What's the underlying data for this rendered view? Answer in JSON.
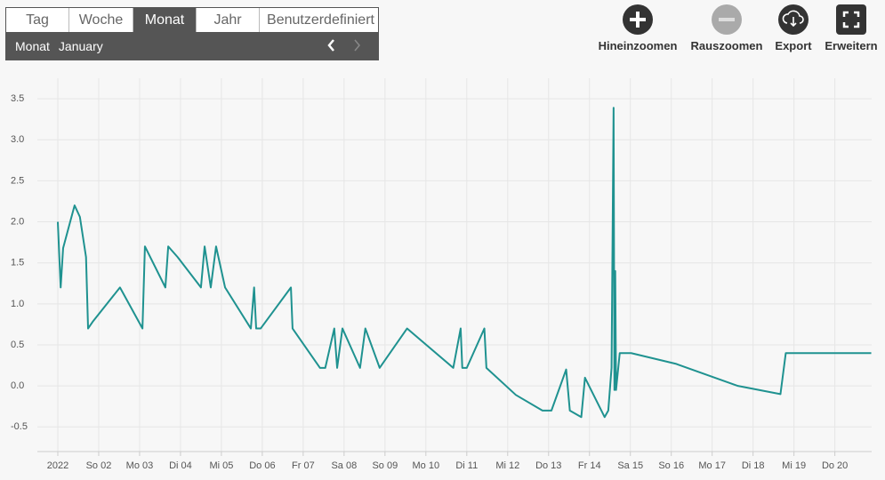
{
  "toolbar": {
    "tabs": [
      "Tag",
      "Woche",
      "Monat",
      "Jahr",
      "Benutzerdefiniert"
    ],
    "active_tab": 2,
    "period_label": "Monat",
    "period_value": "January"
  },
  "actions": [
    "Hineinzoomen",
    "Rauszoomen",
    "Export",
    "Erweitern"
  ],
  "chart_data": {
    "type": "line",
    "color": "#1f9290",
    "grid": true,
    "x": [
      1.0,
      1.07,
      1.13,
      1.41,
      1.54,
      1.69,
      1.74,
      1.85,
      2.52,
      3.07,
      3.13,
      3.63,
      3.7,
      3.93,
      4.5,
      4.59,
      4.74,
      4.87,
      5.09,
      5.72,
      5.8,
      5.85,
      5.96,
      6.7,
      6.74,
      7.41,
      7.54,
      7.76,
      7.83,
      7.96,
      8.39,
      8.52,
      8.87,
      9.54,
      10.67,
      10.85,
      10.89,
      11.0,
      11.43,
      11.48,
      12.2,
      12.85,
      13.07,
      13.43,
      13.52,
      13.8,
      13.89,
      14.37,
      14.46,
      14.54,
      14.59,
      14.61,
      14.63,
      14.65,
      14.74,
      15.02,
      16.11,
      17.63,
      18.67,
      18.8,
      20.89
    ],
    "values": [
      2.0,
      1.2,
      1.68,
      2.2,
      2.06,
      1.57,
      0.7,
      0.78,
      1.2,
      0.7,
      1.7,
      1.2,
      1.7,
      1.57,
      1.2,
      1.7,
      1.2,
      1.7,
      1.2,
      0.7,
      1.2,
      0.7,
      0.7,
      1.2,
      0.7,
      0.22,
      0.22,
      0.7,
      0.22,
      0.7,
      0.22,
      0.7,
      0.22,
      0.7,
      0.22,
      0.7,
      0.22,
      0.22,
      0.7,
      0.22,
      -0.11,
      -0.3,
      -0.3,
      0.2,
      -0.3,
      -0.38,
      0.1,
      -0.38,
      -0.3,
      0.22,
      3.39,
      -0.05,
      1.4,
      -0.05,
      0.4,
      0.4,
      0.27,
      0.0,
      -0.1,
      0.4,
      0.4
    ],
    "xlim": [
      0.5,
      20.9
    ],
    "xticks": [
      {
        "value": 1,
        "label": "2022"
      },
      {
        "value": 2,
        "label": "So 02"
      },
      {
        "value": 3,
        "label": "Mo 03"
      },
      {
        "value": 4,
        "label": "Di 04"
      },
      {
        "value": 5,
        "label": "Mi 05"
      },
      {
        "value": 6,
        "label": "Do 06"
      },
      {
        "value": 7,
        "label": "Fr 07"
      },
      {
        "value": 8,
        "label": "Sa 08"
      },
      {
        "value": 9,
        "label": "So 09"
      },
      {
        "value": 10,
        "label": "Mo 10"
      },
      {
        "value": 11,
        "label": "Di 11"
      },
      {
        "value": 12,
        "label": "Mi 12"
      },
      {
        "value": 13,
        "label": "Do 13"
      },
      {
        "value": 14,
        "label": "Fr 14"
      },
      {
        "value": 15,
        "label": "Sa 15"
      },
      {
        "value": 16,
        "label": "So 16"
      },
      {
        "value": 17,
        "label": "Mo 17"
      },
      {
        "value": 18,
        "label": "Di 18"
      },
      {
        "value": 19,
        "label": "Mi 19"
      },
      {
        "value": 20,
        "label": "Do 20"
      }
    ],
    "ylim": [
      -0.8,
      3.75
    ],
    "yticks": [
      -0.5,
      {
        "value": 0,
        "label": "0.0"
      },
      0.5,
      {
        "value": 1,
        "label": "1.0"
      },
      1.5,
      {
        "value": 2,
        "label": "2.0"
      },
      2.5,
      {
        "value": 3,
        "label": "3.0"
      },
      3.5
    ]
  }
}
